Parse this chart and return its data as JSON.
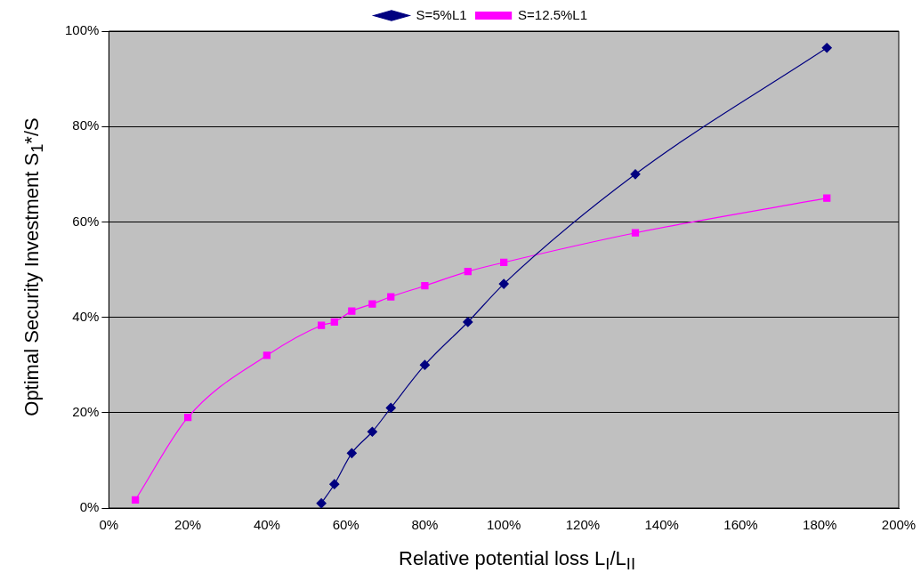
{
  "chart_data": {
    "type": "line",
    "xlabel": "Relative potential loss L$_{I}$/L$_{II}$",
    "ylabel": "Optimal Security Investment S$_{1}$*/S",
    "series": [
      {
        "name": "S=5%L1",
        "color": "#000080",
        "marker": "diamond",
        "x": [
          53.8,
          57.1,
          61.5,
          66.7,
          71.4,
          80,
          90.9,
          100,
          133.3,
          181.8
        ],
        "values": [
          1,
          5,
          11.5,
          16,
          21,
          30,
          39,
          47,
          70,
          96.5
        ]
      },
      {
        "name": "S=12.5%L1",
        "color": "#ff00ff",
        "marker": "square",
        "x": [
          6.7,
          20,
          40,
          53.8,
          57.1,
          61.5,
          66.7,
          71.4,
          80,
          90.9,
          100,
          133.3,
          181.8
        ],
        "values": [
          1.7,
          19,
          32,
          38.3,
          39,
          41.3,
          42.8,
          44.3,
          46.6,
          49.6,
          51.5,
          57.7,
          65
        ]
      }
    ],
    "xlim": [
      0,
      200
    ],
    "xticks": [
      {
        "value": 0,
        "label": "0%"
      },
      {
        "value": 20,
        "label": "20%"
      },
      {
        "value": 40,
        "label": "40%"
      },
      {
        "value": 60,
        "label": "60%"
      },
      {
        "value": 80,
        "label": "80%"
      },
      {
        "value": 100,
        "label": "100%"
      },
      {
        "value": 120,
        "label": "120%"
      },
      {
        "value": 140,
        "label": "140%"
      },
      {
        "value": 160,
        "label": "160%"
      },
      {
        "value": 180,
        "label": "180%"
      },
      {
        "value": 200,
        "label": "200%"
      }
    ],
    "ylim": [
      0,
      100
    ],
    "yticks": [
      {
        "value": 0,
        "label": "0%"
      },
      {
        "value": 20,
        "label": "20%"
      },
      {
        "value": 40,
        "label": "40%"
      },
      {
        "value": 60,
        "label": "60%"
      },
      {
        "value": 80,
        "label": "80%"
      },
      {
        "value": 100,
        "label": "100%"
      }
    ],
    "grid": "y",
    "line_style": "solid",
    "legend": "top"
  }
}
